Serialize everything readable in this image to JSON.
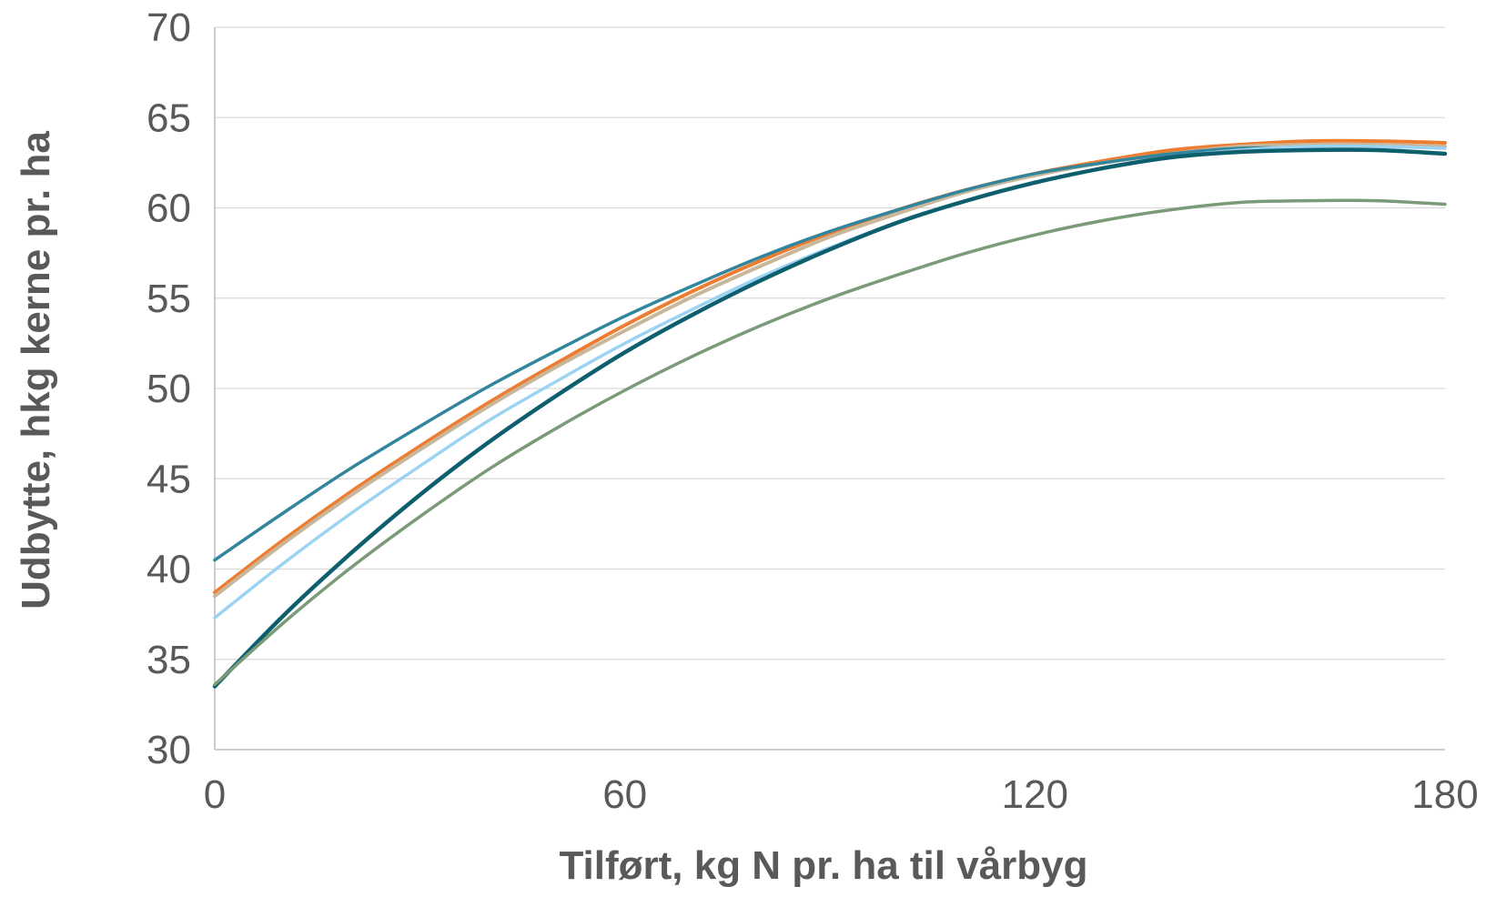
{
  "chart_data": {
    "type": "line",
    "xlabel": "Tilført, kg N pr. ha til vårbyg",
    "ylabel": "Udbytte, hkg kerne pr. ha",
    "xlim": [
      0,
      180
    ],
    "ylim": [
      30,
      70
    ],
    "xticks": [
      0,
      60,
      120,
      180
    ],
    "yticks": [
      30,
      35,
      40,
      45,
      50,
      55,
      60,
      65,
      70
    ],
    "x_tick_labels": [
      "0",
      "60",
      "120",
      "180"
    ],
    "y_tick_labels": [
      "30",
      "35",
      "40",
      "45",
      "50",
      "55",
      "60",
      "65",
      "70"
    ],
    "grid": "horizontal",
    "legend": "none",
    "x": [
      0,
      10,
      20,
      30,
      40,
      50,
      60,
      70,
      80,
      90,
      100,
      110,
      120,
      130,
      140,
      150,
      160,
      170,
      180
    ],
    "series": [
      {
        "color": "#ED7D31",
        "stroke_width": 4,
        "values": [
          38.7,
          41.6,
          44.3,
          46.8,
          49.2,
          51.4,
          53.5,
          55.4,
          57.1,
          58.6,
          59.9,
          61.0,
          61.9,
          62.6,
          63.2,
          63.5,
          63.7,
          63.7,
          63.6
        ]
      },
      {
        "color": "#C9B79C",
        "stroke_width": 4,
        "values": [
          38.5,
          41.4,
          44.1,
          46.6,
          49.0,
          51.2,
          53.2,
          55.1,
          56.8,
          58.4,
          59.7,
          60.9,
          61.8,
          62.5,
          63.0,
          63.4,
          63.5,
          63.5,
          63.4
        ]
      },
      {
        "color": "#31859C",
        "stroke_width": 3.5,
        "values": [
          40.5,
          43.1,
          45.6,
          47.9,
          50.1,
          52.1,
          54.0,
          55.7,
          57.3,
          58.7,
          59.9,
          61.0,
          61.9,
          62.5,
          63.0,
          63.3,
          63.3,
          63.2,
          63.0
        ]
      },
      {
        "color": "#9DD3F2",
        "stroke_width": 3.5,
        "values": [
          37.3,
          40.3,
          43.1,
          45.7,
          48.2,
          50.4,
          52.5,
          54.4,
          56.2,
          57.8,
          59.2,
          60.4,
          61.4,
          62.2,
          62.8,
          63.2,
          63.4,
          63.4,
          63.3
        ]
      },
      {
        "color": "#0E5F6E",
        "stroke_width": 4.5,
        "values": [
          33.5,
          37.4,
          40.9,
          44.1,
          47.0,
          49.6,
          52.0,
          54.1,
          56.0,
          57.7,
          59.2,
          60.4,
          61.4,
          62.2,
          62.8,
          63.1,
          63.2,
          63.2,
          63.0
        ]
      },
      {
        "color": "#7A9A78",
        "stroke_width": 3.5,
        "values": [
          33.6,
          37.0,
          40.1,
          42.9,
          45.5,
          47.8,
          49.9,
          51.8,
          53.5,
          55.0,
          56.3,
          57.5,
          58.5,
          59.3,
          59.9,
          60.3,
          60.4,
          60.4,
          60.2
        ]
      }
    ]
  }
}
